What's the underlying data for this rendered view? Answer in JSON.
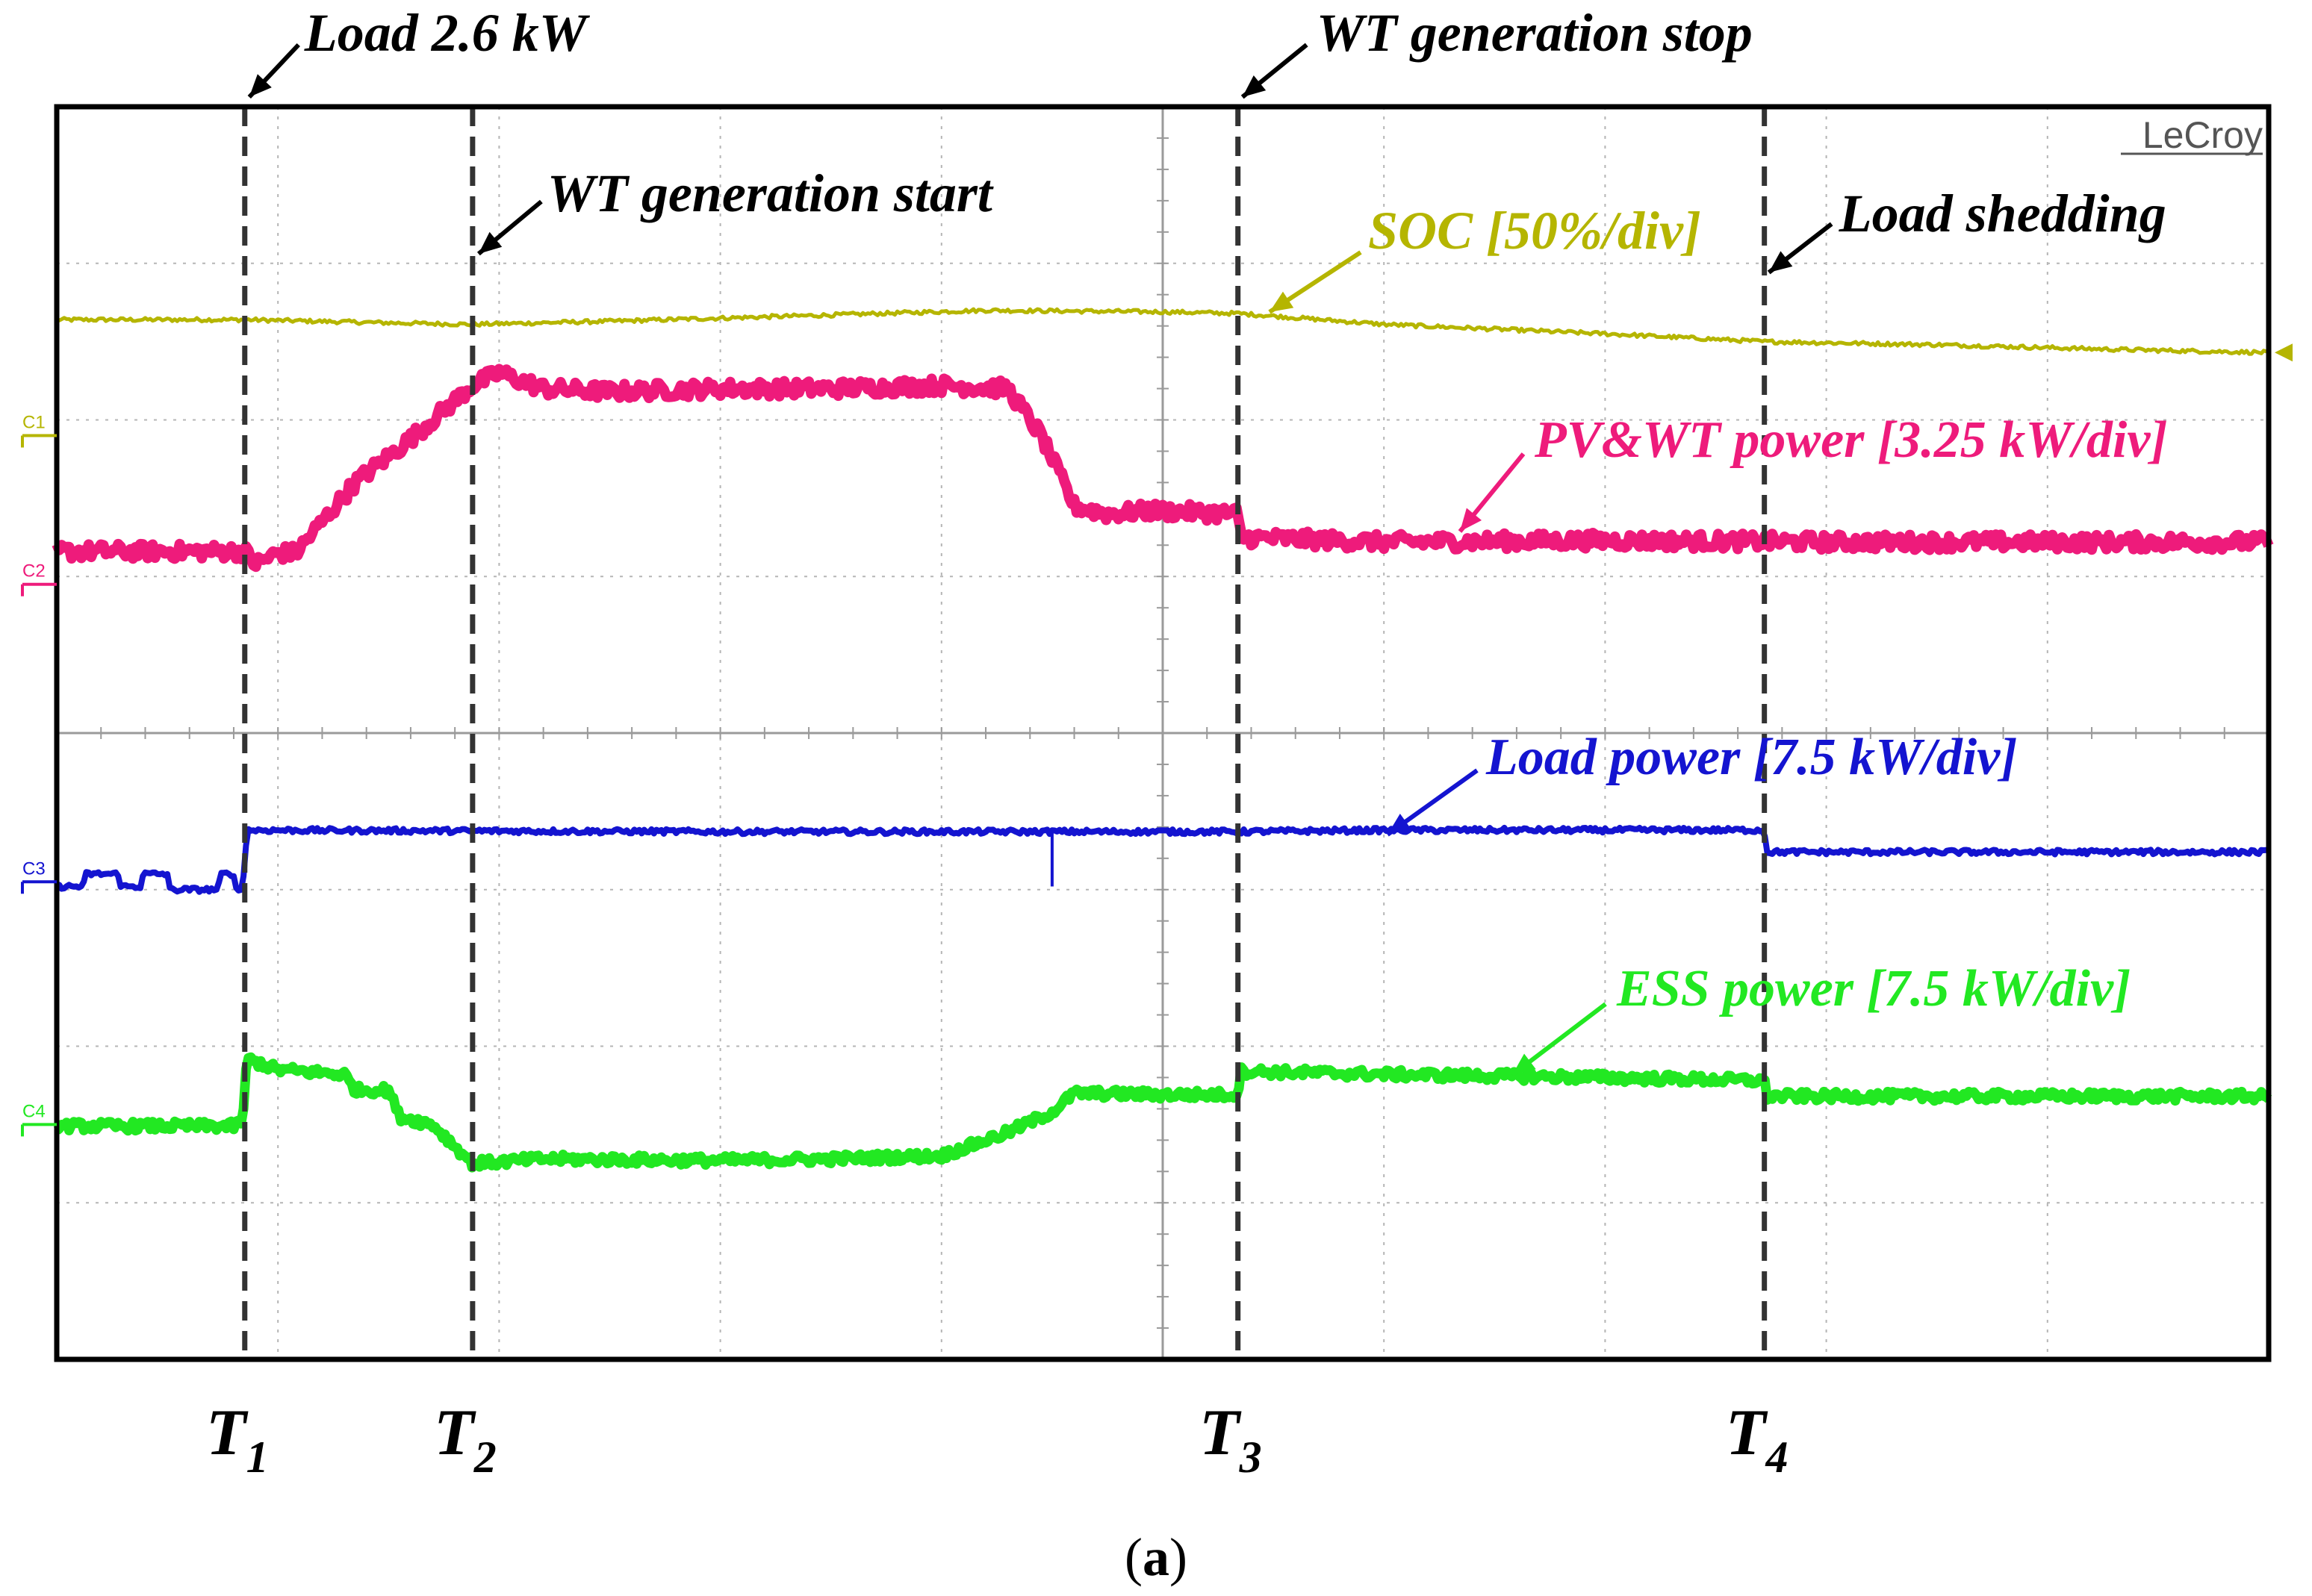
{
  "chart_data": {
    "type": "line",
    "title": "",
    "brand": "LeCroy",
    "caption": {
      "pre": "(",
      "bold": "a",
      "post": ")"
    },
    "x_axis": {
      "divisions": 10,
      "range": [
        0,
        10
      ],
      "unit": "div"
    },
    "y_axis": {
      "divisions": 8,
      "range": [
        -4,
        4
      ],
      "unit": "div"
    },
    "time_markers": [
      {
        "name": "T",
        "sub": "1",
        "x": 0.85
      },
      {
        "name": "T",
        "sub": "2",
        "x": 1.88
      },
      {
        "name": "T",
        "sub": "3",
        "x": 5.34
      },
      {
        "name": "T",
        "sub": "4",
        "x": 7.72
      }
    ],
    "events": [
      {
        "label": "Load 2.6 kW",
        "at": "T1"
      },
      {
        "label": "WT generation start",
        "at": "T2"
      },
      {
        "label": "WT generation stop",
        "at": "T3"
      },
      {
        "label": "Load shedding",
        "at": "T4"
      }
    ],
    "series": [
      {
        "name": "SOC [50%/div]",
        "channel": "C1",
        "color": "#b5b500",
        "width": 5,
        "noise": 0.012,
        "x": [
          0,
          0.85,
          1.5,
          1.88,
          2.5,
          3.5,
          4.2,
          5.0,
          5.34,
          6.0,
          7.0,
          7.72,
          8.5,
          9.3,
          10
        ],
        "y": [
          2.64,
          2.64,
          2.62,
          2.61,
          2.63,
          2.67,
          2.7,
          2.69,
          2.68,
          2.61,
          2.55,
          2.5,
          2.48,
          2.45,
          2.43
        ]
      },
      {
        "name": "PV&WT power [3.25 kW/div]",
        "channel": "C2",
        "color": "#ee1b7b",
        "width": 14,
        "noise": 0.05,
        "x": [
          0,
          0.85,
          0.9,
          1.0,
          1.08,
          1.35,
          1.6,
          1.88,
          2.0,
          2.2,
          2.5,
          3.0,
          3.5,
          4.0,
          4.3,
          4.45,
          4.6,
          4.75,
          4.95,
          5.34,
          5.35,
          6.0,
          7.0,
          8.0,
          9.0,
          10
        ],
        "y": [
          1.16,
          1.16,
          1.08,
          1.15,
          1.15,
          1.6,
          1.88,
          2.22,
          2.3,
          2.2,
          2.18,
          2.2,
          2.2,
          2.22,
          2.2,
          1.9,
          1.45,
          1.4,
          1.42,
          1.4,
          1.25,
          1.22,
          1.23,
          1.22,
          1.22,
          1.22
        ]
      },
      {
        "name": "Load power [7.5 kW/div]",
        "channel": "C3",
        "color": "#1414d0",
        "width": 8,
        "noise": 0.015,
        "x": [
          0,
          0.12,
          0.13,
          0.28,
          0.29,
          0.38,
          0.39,
          0.5,
          0.51,
          0.73,
          0.74,
          0.8,
          0.81,
          0.84,
          0.86,
          3.0,
          5.0,
          5.34,
          6.0,
          7.72,
          7.73,
          10
        ],
        "y": [
          -0.98,
          -0.98,
          -0.9,
          -0.9,
          -0.98,
          -0.98,
          -0.9,
          -0.9,
          -1.0,
          -1.0,
          -0.9,
          -0.9,
          -1.0,
          -1.0,
          -0.62,
          -0.63,
          -0.63,
          -0.63,
          -0.62,
          -0.62,
          -0.76,
          -0.76
        ]
      },
      {
        "name": "ESS power [7.5 kW/div]",
        "channel": "C4",
        "color": "#22e822",
        "width": 13,
        "noise": 0.03,
        "x": [
          0,
          0.8,
          0.84,
          0.86,
          1.0,
          1.3,
          1.35,
          1.5,
          1.55,
          1.7,
          1.88,
          2.2,
          3.0,
          3.5,
          4.0,
          4.3,
          4.5,
          4.6,
          5.0,
          5.34,
          5.35,
          6.0,
          7.0,
          7.72,
          7.73,
          8.5,
          10
        ],
        "y": [
          -2.51,
          -2.51,
          -2.48,
          -2.08,
          -2.15,
          -2.18,
          -2.28,
          -2.28,
          -2.45,
          -2.5,
          -2.75,
          -2.72,
          -2.73,
          -2.72,
          -2.7,
          -2.55,
          -2.42,
          -2.3,
          -2.31,
          -2.31,
          -2.16,
          -2.18,
          -2.2,
          -2.22,
          -2.32,
          -2.32,
          -2.32
        ]
      }
    ],
    "channel_markers": [
      {
        "channel": "C1",
        "color": "#b5b500",
        "y": 1.9
      },
      {
        "channel": "C2",
        "color": "#ee1b7b",
        "y": 0.95
      },
      {
        "channel": "C3",
        "color": "#1414d0",
        "y": -0.95
      },
      {
        "channel": "C4",
        "color": "#22e822",
        "y": -2.5
      }
    ],
    "trigger_level_marker": {
      "y": 2.43,
      "color": "#b5b500"
    }
  }
}
